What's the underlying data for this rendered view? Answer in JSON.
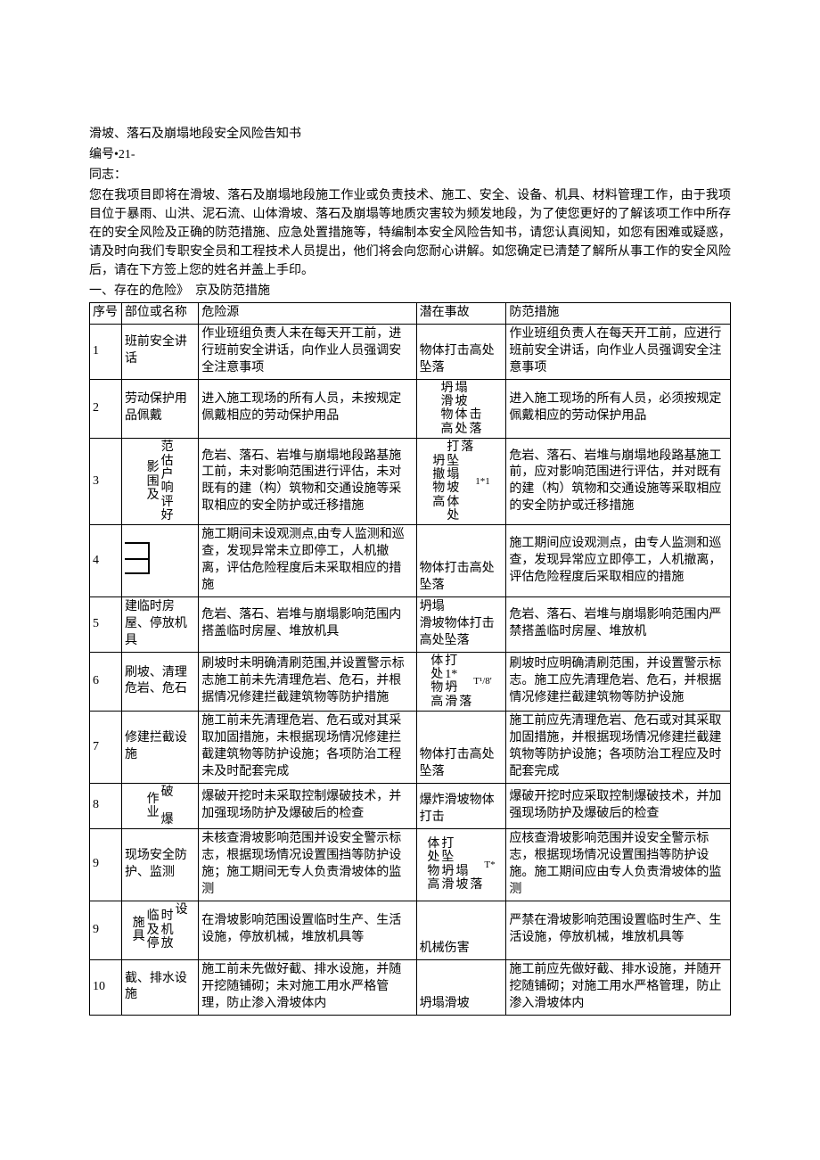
{
  "header": {
    "title": "滑坡、落石及崩塌地段安全风险告知书",
    "doc_number": "编号•21-",
    "salutation": "同志：",
    "intro": "您在我项目即将在滑坡、落石及崩塌地段施工作业或负责技术、施工、安全、设备、机具、材料管理工作，由于我项目位于暴雨、山洪、泥石流、山体滑坡、落石及崩塌等地质灾害较为频发地段，为了使您更好的了解该项工作中所存在的安全风险及正确的防范措施、应急处置措施等，特编制本安全风险告知书，请您认真阅知，如您有困难或疑惑，请及时向我们专职安全员和工程技术人员提出，他们将会向您耐心讲解。如您确定已清楚了解所从事工作的安全风险后，请在下方签上您的姓名并盖上手印。",
    "section1": "一、存在的危险》　京及防范措施"
  },
  "table": {
    "headers": {
      "seq": "序号",
      "part": "部位或名称",
      "hazard": "危险源",
      "accident": "潜在事故",
      "prevent": "防范措施"
    },
    "rows": [
      {
        "seq": "1",
        "part": "班前安全讲话",
        "hazard": "作业班组负责人未在每天开工前，进行班前安全讲话，向作业人员强调安全注意事项",
        "accident": "物体打击高处坠落",
        "prevent": "作业班组负责人在每天开工前，应进行班前安全讲话，向作业人员强调安全注意事项"
      },
      {
        "seq": "2",
        "part": "劳动保护用品佩戴",
        "hazard": "进入施工现场的所有人员，未按规定佩戴相应的劳动保护用品",
        "accident_cols": [
          [
            "坍",
            "滑",
            "物",
            "高"
          ],
          [
            "塌",
            "坡",
            "体",
            "处"
          ],
          [
            "",
            "",
            "击",
            "落"
          ]
        ],
        "prevent": "进入施工现场的所有人员，必须按规定佩戴相应的劳动保护用品"
      },
      {
        "seq": "3",
        "part_cols": [
          [
            "影",
            "围",
            "及"
          ],
          [
            "范",
            "估",
            "户",
            "响",
            "评",
            "好"
          ]
        ],
        "hazard": "危岩、落石、岩堆与崩塌地段路基施工前，未对影响范围进行评估，未对既有的建（构）筑物和交通设施等采取相应的安全防护或迁移措施",
        "accident_cols": [
          [
            "坍",
            "撤",
            "物",
            "高"
          ],
          [
            "打",
            "坠",
            "塌",
            "坡",
            "体",
            "处"
          ],
          [
            "落",
            "",
            "",
            "",
            "",
            ""
          ]
        ],
        "accident_extra": "1*1",
        "prevent": "危岩、落石、岩堆与崩塌地段路基施工前，应对影响范围进行评估，并对既有的建（构）筑物和交通设施等采取相应的安全防护或迁移措施"
      },
      {
        "seq": "4",
        "part_shape": true,
        "hazard": "施工期间未设观测点,由专人监测和巡查，发现异常未立即停工，人机撤离，评估危险程度后未采取相应的措施",
        "accident": "物体打击高处坠落",
        "prevent": "施工期间应设观测点，由专人监测和巡查，发现异常应立即停工，人机撤离，评估危险程度后采取相应的措施"
      },
      {
        "seq": "5",
        "part": "建临时房屋、停放机具",
        "hazard": "危岩、落石、岩堆与崩塌影响范围内搭盖临时房屋、堆放机具",
        "accident": "坍塌\n滑坡物体打击高处坠落",
        "prevent": "危岩、落石、岩堆与崩塌影响范围内严禁搭盖临时房屋、堆放机"
      },
      {
        "seq": "6",
        "part": "刷坡、清理危岩、危石",
        "hazard": "刷坡时未明确清刷范围,并设置警示标志施工前未先清理危岩、危石，并根据情况修建拦截建筑物等防护措施",
        "accident_cols": [
          [
            "体",
            "处",
            "物",
            "高"
          ],
          [
            "打",
            "1*",
            "坍",
            "滑"
          ],
          [
            "",
            "",
            "",
            "落"
          ]
        ],
        "accident_extra": "T¹/8'",
        "prevent": "刷坡时应明确清刷范围，并设置警示标志。施工应先清理危岩、危石，并根据情况修建拦截建筑物等防护设施"
      },
      {
        "seq": "7",
        "part": "修建拦截设施",
        "hazard": "施工前未先清理危岩、危石或对其采取加固措施，未根据现场情况修建拦截建筑物等防护设施；各项防治工程未及时配套完成",
        "accident": "物体打击高处坠落",
        "prevent": "施工前应先清理危岩、危石或对其采取加固措施，并根据现场情况修建拦截建筑物等防护设施；各项防治工程应及时配套完成"
      },
      {
        "seq": "8",
        "part_cols": [
          [
            "作",
            "业"
          ],
          [
            "破",
            "",
            "爆"
          ]
        ],
        "hazard": "爆破开挖时未采取控制爆破技术，并加强现场防护及爆破后的检查",
        "accident": "爆炸滑坡物体打击",
        "prevent": "爆破开挖时应采取控制爆破技术，并加强现场防护及爆破后的检查"
      },
      {
        "seq": "9",
        "part": "现场安全防护、监测",
        "hazard": "未核查滑坡影响范围并设安全警示标志，根据现场情况设置围挡等防护设施；施工期间无专人负责滑坡体的监测",
        "accident_cols": [
          [
            "体",
            "处",
            "物",
            "高"
          ],
          [
            "打",
            "坠",
            "坍",
            "滑"
          ],
          [
            "",
            "",
            "塌",
            "坡"
          ],
          [
            "",
            "",
            "",
            "落"
          ]
        ],
        "accident_extra": "T*",
        "prevent": "应核查滑坡影响范围并设安全警示标志，根据现场情况设置围挡等防护设施。施工期间应由专人负责滑坡体的监测"
      },
      {
        "seq": "9",
        "part_cols": [
          [
            "施",
            "具"
          ],
          [
            "临",
            "及",
            "停"
          ],
          [
            "时",
            "机",
            "放"
          ],
          [
            "设",
            "",
            "",
            ""
          ]
        ],
        "hazard": "在滑坡影响范围设置临时生产、生活设施，停放机械，堆放机具等",
        "accident": "机械伤害",
        "prevent": "严禁在滑坡影响范围设置临时生产、生活设施，停放机械，堆放机具等"
      },
      {
        "seq": "10",
        "part": "截、排水设施",
        "hazard": "施工前未先做好截、排水设施，并随开挖随铺砌；未对施工用水严格管理，防止渗入滑坡体内",
        "accident": "坍塌滑坡",
        "prevent": "施工前应先做好截、排水设施，并随开挖随铺砌；对施工用水严格管理，防止渗入滑坡体内"
      }
    ]
  }
}
